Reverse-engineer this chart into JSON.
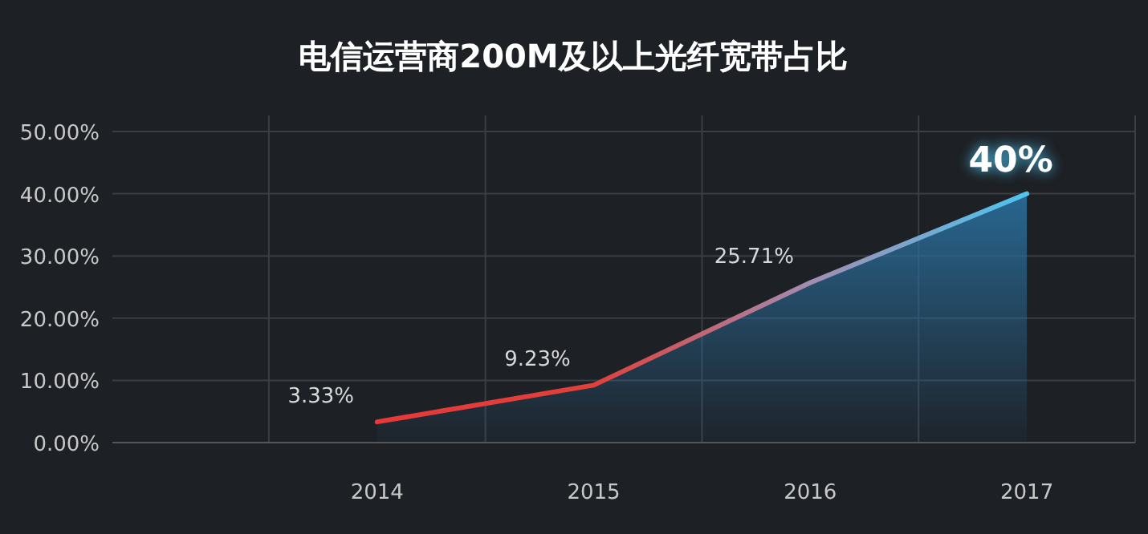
{
  "chart_data": {
    "type": "area",
    "title": "电信运营商200M及以上光纤宽带占比",
    "categories": [
      "2014",
      "2015",
      "2016",
      "2017"
    ],
    "series": [
      {
        "colors": [
          "#e8383a",
          "#e0403a",
          "#a38cb0",
          "#4cc4f0"
        ],
        "color": "#2a6e9c",
        "values": [
          3.33,
          9.23,
          25.71,
          40
        ]
      }
    ],
    "value_labels": [
      "3.33%",
      "9.23%",
      "25.71%",
      "40%"
    ],
    "ylim": [
      0,
      50
    ],
    "yticks": [
      {
        "value": 0,
        "label": "0.00%"
      },
      {
        "value": 10,
        "label": "10.00%"
      },
      {
        "value": 20,
        "label": "20.00%"
      },
      {
        "value": 30,
        "label": "30.00%"
      },
      {
        "value": 40,
        "label": "40.00%"
      },
      {
        "value": 50,
        "label": "50.00%"
      }
    ],
    "grid": true
  }
}
